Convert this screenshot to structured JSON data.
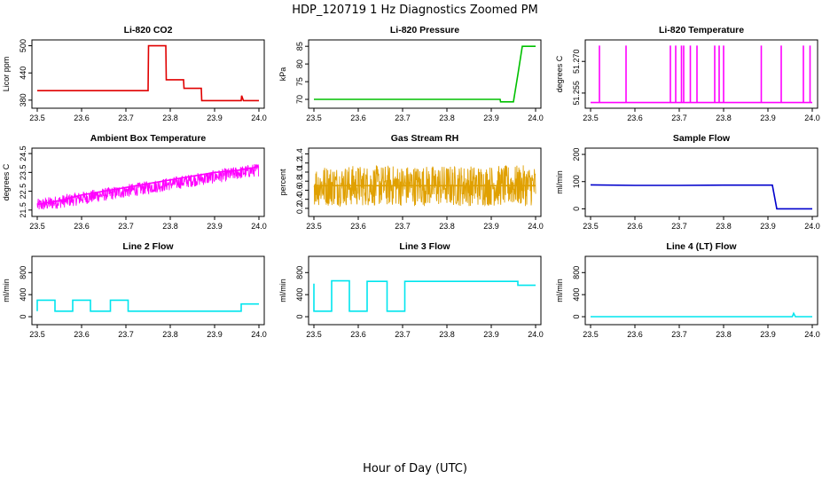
{
  "title": "HDP_120719  1 Hz Diagnostics Zoomed PM",
  "xlabel": "Hour of Day (UTC)",
  "chart_data": [
    {
      "type": "line",
      "title": "Li-820 CO2",
      "ylabel": "Licor ppm",
      "color": "#e00000",
      "xlim": [
        23.5,
        24.0
      ],
      "ylim": [
        370,
        505
      ],
      "xticks": [
        "23.5",
        "23.6",
        "23.7",
        "23.8",
        "23.9",
        "24.0"
      ],
      "yticks": [
        "380",
        "440",
        "500"
      ],
      "series": [
        {
          "name": "CO2",
          "x": [
            23.5,
            23.75,
            23.751,
            23.79,
            23.791,
            23.83,
            23.831,
            23.87,
            23.871,
            23.96,
            23.961,
            23.965,
            24.0
          ],
          "y": [
            401,
            401,
            500,
            500,
            425,
            425,
            406,
            406,
            379,
            379,
            390,
            379,
            379
          ]
        }
      ]
    },
    {
      "type": "line",
      "title": "Li-820 Pressure",
      "ylabel": "kPa",
      "color": "#00c000",
      "xlim": [
        23.5,
        24.0
      ],
      "ylim": [
        68.5,
        85.8
      ],
      "xticks": [
        "23.5",
        "23.6",
        "23.7",
        "23.8",
        "23.9",
        "24.0"
      ],
      "yticks": [
        "70",
        "75",
        "80",
        "85"
      ],
      "series": [
        {
          "name": "Pressure",
          "x": [
            23.5,
            23.92,
            23.921,
            23.95,
            23.96,
            23.97,
            23.975,
            24.0
          ],
          "y": [
            70,
            70,
            69.3,
            69.3,
            77,
            85,
            85,
            85
          ]
        }
      ]
    },
    {
      "type": "line",
      "title": "Li-820 Temperature",
      "ylabel": "degrees C",
      "color": "#ff00ff",
      "xlim": [
        23.5,
        24.0
      ],
      "ylim": [
        51.2495,
        51.2785
      ],
      "xticks": [
        "23.5",
        "23.6",
        "23.7",
        "23.8",
        "23.9",
        "24.0"
      ],
      "yticks": [
        "51.255",
        "51.270"
      ],
      "series": [
        {
          "name": "Temperature",
          "x": [
            23.5,
            23.52,
            23.52,
            23.52,
            23.58,
            23.58,
            23.58,
            23.68,
            23.68,
            23.68,
            23.692,
            23.692,
            23.692,
            23.705,
            23.705,
            23.705,
            23.71,
            23.71,
            23.71,
            23.725,
            23.725,
            23.725,
            23.74,
            23.74,
            23.74,
            23.78,
            23.78,
            23.78,
            23.79,
            23.79,
            23.79,
            23.8,
            23.8,
            23.8,
            23.885,
            23.885,
            23.885,
            23.93,
            23.93,
            23.93,
            23.98,
            23.98,
            23.98,
            23.995,
            23.995,
            23.995,
            24.0
          ],
          "y": [
            51.2505,
            51.2505,
            51.2775,
            51.2505,
            51.2505,
            51.2775,
            51.2505,
            51.2505,
            51.2775,
            51.2505,
            51.2505,
            51.2775,
            51.2505,
            51.2505,
            51.2775,
            51.2505,
            51.2505,
            51.2775,
            51.2505,
            51.2505,
            51.2775,
            51.2505,
            51.2505,
            51.2775,
            51.2505,
            51.2505,
            51.2775,
            51.2505,
            51.2505,
            51.2775,
            51.2505,
            51.2505,
            51.2775,
            51.2505,
            51.2505,
            51.2775,
            51.2505,
            51.2505,
            51.2775,
            51.2505,
            51.2505,
            51.2775,
            51.2505,
            51.2505,
            51.2775,
            51.2505,
            51.2505
          ]
        }
      ]
    },
    {
      "type": "line",
      "title": "Ambient Box Temperature",
      "ylabel": "degrees C",
      "color": "#ff00ff",
      "xlim": [
        23.5,
        24.0
      ],
      "ylim": [
        21.35,
        24.6
      ],
      "xticks": [
        "23.5",
        "23.6",
        "23.7",
        "23.8",
        "23.9",
        "24.0"
      ],
      "yticks": [
        "21.5",
        "22.5",
        "23.5",
        "24.5"
      ],
      "series": [
        {
          "name": "Ambient",
          "x": [
            23.5,
            23.55,
            23.6,
            23.65,
            23.7,
            23.75,
            23.8,
            23.85,
            23.9,
            23.95,
            24.0
          ],
          "y": [
            21.8,
            22.0,
            22.3,
            22.5,
            22.7,
            22.9,
            23.1,
            23.3,
            23.5,
            23.6,
            23.8
          ]
        }
      ]
    },
    {
      "type": "line",
      "title": "Gas Stream RH",
      "ylabel": "percent",
      "color": "#e0a000",
      "xlim": [
        23.5,
        24.0
      ],
      "ylim": [
        0.1,
        1.45
      ],
      "xticks": [
        "23.5",
        "23.6",
        "23.7",
        "23.8",
        "23.9",
        "24.0"
      ],
      "yticks": [
        "0.2",
        "0.4",
        "0.6",
        "0.8",
        "1.0",
        "1.2",
        "1.4"
      ],
      "series": [
        {
          "name": "RH",
          "x": [
            23.5,
            23.6,
            23.7,
            23.8,
            23.9,
            24.0
          ],
          "y": [
            0.7,
            0.7,
            0.7,
            0.7,
            0.7,
            0.7
          ]
        }
      ]
    },
    {
      "type": "line",
      "title": "Sample Flow",
      "ylabel": "ml/min",
      "color": "#0000cc",
      "xlim": [
        23.5,
        24.0
      ],
      "ylim": [
        -15,
        210
      ],
      "xticks": [
        "23.5",
        "23.6",
        "23.7",
        "23.8",
        "23.9",
        "24.0"
      ],
      "yticks": [
        "0",
        "100",
        "200"
      ],
      "series": [
        {
          "name": "Sample",
          "x": [
            23.5,
            23.6,
            23.7,
            23.8,
            23.91,
            23.92,
            24.0
          ],
          "y": [
            88,
            86,
            86,
            87,
            87,
            0,
            0
          ]
        }
      ]
    },
    {
      "type": "line",
      "title": "Line 2 Flow",
      "ylabel": "ml/min",
      "color": "#00e5ee",
      "xlim": [
        23.5,
        24.0
      ],
      "ylim": [
        -80,
        1030
      ],
      "xticks": [
        "23.5",
        "23.6",
        "23.7",
        "23.8",
        "23.9",
        "24.0"
      ],
      "yticks": [
        "0",
        "400",
        "800"
      ],
      "series": [
        {
          "name": "Line2",
          "x": [
            23.5,
            23.5,
            23.54,
            23.54,
            23.58,
            23.58,
            23.62,
            23.62,
            23.665,
            23.665,
            23.705,
            23.705,
            23.96,
            23.96,
            24.0
          ],
          "y": [
            100,
            300,
            300,
            100,
            100,
            300,
            300,
            100,
            100,
            300,
            300,
            100,
            100,
            230,
            230
          ]
        }
      ]
    },
    {
      "type": "line",
      "title": "Line 3 Flow",
      "ylabel": "ml/min",
      "color": "#00e5ee",
      "xlim": [
        23.5,
        24.0
      ],
      "ylim": [
        -80,
        1030
      ],
      "xticks": [
        "23.5",
        "23.6",
        "23.7",
        "23.8",
        "23.9",
        "24.0"
      ],
      "yticks": [
        "0",
        "400",
        "800"
      ],
      "series": [
        {
          "name": "Line3",
          "x": [
            23.5,
            23.5,
            23.5,
            23.54,
            23.54,
            23.58,
            23.58,
            23.62,
            23.62,
            23.665,
            23.665,
            23.705,
            23.705,
            23.96,
            23.96,
            24.0
          ],
          "y": [
            100,
            600,
            100,
            100,
            650,
            650,
            100,
            100,
            640,
            640,
            100,
            100,
            640,
            640,
            570,
            570
          ]
        }
      ]
    },
    {
      "type": "line",
      "title": "Line 4 (LT) Flow",
      "ylabel": "ml/min",
      "color": "#00e5ee",
      "xlim": [
        23.5,
        24.0
      ],
      "ylim": [
        -80,
        1030
      ],
      "xticks": [
        "23.5",
        "23.6",
        "23.7",
        "23.8",
        "23.9",
        "24.0"
      ],
      "yticks": [
        "0",
        "400",
        "800"
      ],
      "series": [
        {
          "name": "Line4",
          "x": [
            23.5,
            23.955,
            23.958,
            23.962,
            24.0
          ],
          "y": [
            0,
            0,
            60,
            0,
            0
          ]
        }
      ]
    }
  ]
}
